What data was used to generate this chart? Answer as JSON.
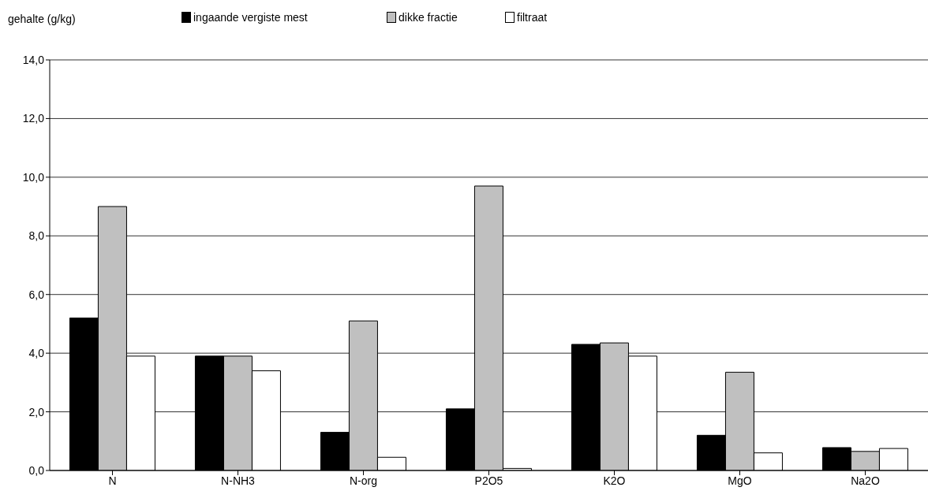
{
  "chart_data": {
    "type": "bar",
    "ylabel": "gehalte (g/kg)",
    "categories": [
      "N",
      "N-NH3",
      "N-org",
      "P2O5",
      "K2O",
      "MgO",
      "Na2O"
    ],
    "series": [
      {
        "name": "ingaande vergiste mest",
        "color": "#000000",
        "values": [
          5.2,
          3.9,
          1.3,
          2.1,
          4.3,
          1.2,
          0.78
        ]
      },
      {
        "name": "dikke fractie",
        "color": "#c0c0c0",
        "values": [
          9.0,
          3.9,
          5.1,
          9.7,
          4.35,
          3.35,
          0.65
        ]
      },
      {
        "name": "filtraat",
        "color": "#ffffff",
        "values": [
          3.9,
          3.4,
          0.45,
          0.07,
          3.9,
          0.6,
          0.75
        ]
      }
    ],
    "ylim": [
      0,
      14
    ],
    "yticks": [
      {
        "value": 0,
        "label": "0,0"
      },
      {
        "value": 2,
        "label": "2,0"
      },
      {
        "value": 4,
        "label": "4,0"
      },
      {
        "value": 6,
        "label": "6,0"
      },
      {
        "value": 8,
        "label": "8,0"
      },
      {
        "value": 10,
        "label": "10,0"
      },
      {
        "value": 12,
        "label": "12,0"
      },
      {
        "value": 14,
        "label": "14,0"
      }
    ],
    "grid": "y",
    "legend": "top"
  }
}
